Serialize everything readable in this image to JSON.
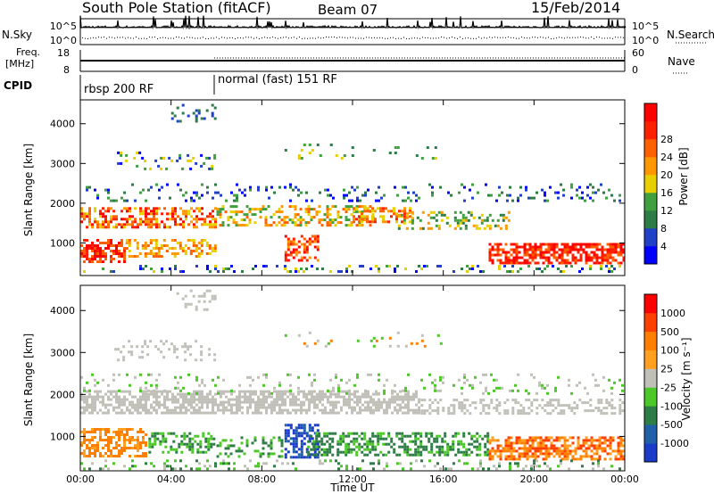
{
  "header": {
    "title": "South Pole Station (fitACF)",
    "beam": "Beam 07",
    "date": "15/Feb/2014"
  },
  "colors": {
    "power_scale": [
      "#0000ff",
      "#2040c8",
      "#2e7c46",
      "#40a040",
      "#e8d000",
      "#ff9800",
      "#ff6000",
      "#ff2000",
      "#ff0000"
    ],
    "velocity_scale": [
      "#1a3cc8",
      "#2060a8",
      "#2e7c46",
      "#4cc828",
      "#c0c0b8",
      "#ffa020",
      "#ff8000",
      "#ff4000",
      "#ff0000"
    ],
    "ground_scatter": "#c0c0b8"
  },
  "chart_data": [
    {
      "type": "line",
      "panel": "N.Sky / N.Search",
      "left_label": "N.Sky",
      "right_label": "N.Search",
      "left_ticks": [
        "10^5",
        "10^0"
      ],
      "right_ticks": [
        "10^5",
        "10^0"
      ]
    },
    {
      "type": "line",
      "panel": "Freq. / Nave",
      "left_label_line1": "Freq.",
      "left_label_line2": "[MHz]",
      "right_label": "Nave",
      "left_ticks": [
        "18",
        "8"
      ],
      "right_ticks": [
        "60",
        "0"
      ]
    },
    {
      "type": "table",
      "panel": "CPID",
      "label": "CPID",
      "segments": [
        {
          "text": "rbsp 200 RF",
          "start_hour": 0
        },
        {
          "text": "normal (fast) 151 RF",
          "start_hour": 6
        }
      ]
    },
    {
      "type": "heatmap",
      "panel": "power",
      "ylabel": "Slant Range [km]",
      "yticks": [
        "1000",
        "2000",
        "3000",
        "4000"
      ],
      "colorbar_label": "Power [dB]",
      "colorbar_ticks": [
        "4",
        "8",
        "12",
        "16",
        "20",
        "24",
        "28"
      ]
    },
    {
      "type": "heatmap",
      "panel": "velocity",
      "ylabel": "Slant Range [km]",
      "yticks": [
        "1000",
        "2000",
        "3000",
        "4000"
      ],
      "colorbar_label": "Velocity [m s⁻¹]",
      "colorbar_ticks": [
        "1000",
        "500",
        "100",
        "25",
        "-25",
        "-100",
        "-500",
        "-1000"
      ]
    }
  ],
  "xaxis": {
    "label": "Time UT",
    "ticks": [
      "00:00",
      "04:00",
      "08:00",
      "12:00",
      "16:00",
      "20:00",
      "00:00"
    ]
  }
}
